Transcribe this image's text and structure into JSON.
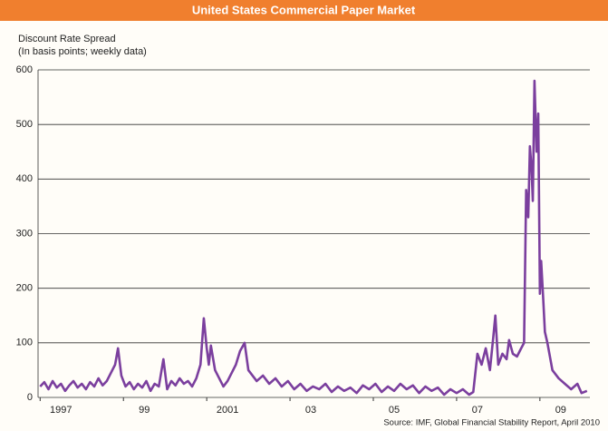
{
  "chart_data": {
    "type": "line",
    "title": "United States Commercial Paper Market",
    "subtitle": [
      "Discount Rate Spread",
      "(In basis points; weekly data)"
    ],
    "source": "Source: IMF, Global Financial Stability Report, April 2010",
    "x": [
      1997.0,
      1997.1,
      1997.2,
      1997.3,
      1997.4,
      1997.5,
      1997.6,
      1997.7,
      1997.8,
      1997.9,
      1998.0,
      1998.1,
      1998.2,
      1998.3,
      1998.4,
      1998.5,
      1998.6,
      1998.7,
      1998.8,
      1998.87,
      1998.95,
      1999.05,
      1999.15,
      1999.25,
      1999.35,
      1999.45,
      1999.55,
      1999.65,
      1999.75,
      1999.85,
      1999.96,
      2000.05,
      2000.15,
      2000.25,
      2000.35,
      2000.45,
      2000.55,
      2000.65,
      2000.75,
      2000.85,
      2000.93,
      2001.0,
      2001.05,
      2001.1,
      2001.2,
      2001.3,
      2001.4,
      2001.5,
      2001.6,
      2001.7,
      2001.8,
      2001.91,
      2002.0,
      2002.1,
      2002.2,
      2002.35,
      2002.5,
      2002.65,
      2002.8,
      2002.95,
      2003.1,
      2003.25,
      2003.4,
      2003.55,
      2003.7,
      2003.85,
      2004.0,
      2004.15,
      2004.3,
      2004.45,
      2004.6,
      2004.75,
      2004.9,
      2005.05,
      2005.2,
      2005.35,
      2005.5,
      2005.65,
      2005.8,
      2005.95,
      2006.1,
      2006.25,
      2006.4,
      2006.55,
      2006.7,
      2006.85,
      2007.0,
      2007.15,
      2007.3,
      2007.4,
      2007.5,
      2007.6,
      2007.7,
      2007.8,
      2007.88,
      2007.93,
      2008.0,
      2008.1,
      2008.2,
      2008.26,
      2008.35,
      2008.45,
      2008.55,
      2008.62,
      2008.67,
      2008.72,
      2008.76,
      2008.8,
      2008.83,
      2008.87,
      2008.92,
      2008.96,
      2009.0,
      2009.03,
      2009.08,
      2009.12,
      2009.18,
      2009.3,
      2009.45,
      2009.6,
      2009.75,
      2009.9,
      2010.0,
      2010.13
    ],
    "series": [
      {
        "name": "Discount Rate Spread",
        "color": "#7b3f9e",
        "values": [
          20,
          28,
          15,
          30,
          18,
          25,
          12,
          22,
          30,
          18,
          25,
          15,
          28,
          20,
          35,
          22,
          30,
          45,
          60,
          90,
          40,
          20,
          28,
          15,
          25,
          18,
          30,
          12,
          25,
          20,
          70,
          15,
          30,
          22,
          35,
          25,
          30,
          20,
          35,
          60,
          145,
          90,
          60,
          95,
          50,
          35,
          20,
          30,
          45,
          60,
          85,
          100,
          50,
          40,
          30,
          40,
          25,
          35,
          20,
          30,
          15,
          25,
          12,
          20,
          15,
          25,
          10,
          20,
          12,
          18,
          8,
          22,
          15,
          25,
          10,
          20,
          12,
          25,
          15,
          22,
          8,
          20,
          12,
          18,
          5,
          15,
          8,
          15,
          5,
          10,
          80,
          60,
          90,
          50,
          110,
          150,
          60,
          80,
          70,
          105,
          80,
          75,
          90,
          100,
          380,
          330,
          460,
          420,
          360,
          580,
          450,
          520,
          190,
          250,
          180,
          120,
          100,
          50,
          35,
          25,
          15,
          25,
          8,
          12
        ]
      }
    ],
    "xlim": [
      1996.95,
      2010.2
    ],
    "ylim": [
      0,
      600
    ],
    "yticks": [
      0,
      100,
      200,
      300,
      400,
      500,
      600
    ],
    "xticks": [
      {
        "value": 1997,
        "label": "1997"
      },
      {
        "value": 1999,
        "label": "99"
      },
      {
        "value": 2001,
        "label": "2001"
      },
      {
        "value": 2003,
        "label": "03"
      },
      {
        "value": 2005,
        "label": "05"
      },
      {
        "value": 2007,
        "label": "07"
      },
      {
        "value": 2009,
        "label": "09"
      }
    ],
    "grid": true
  }
}
